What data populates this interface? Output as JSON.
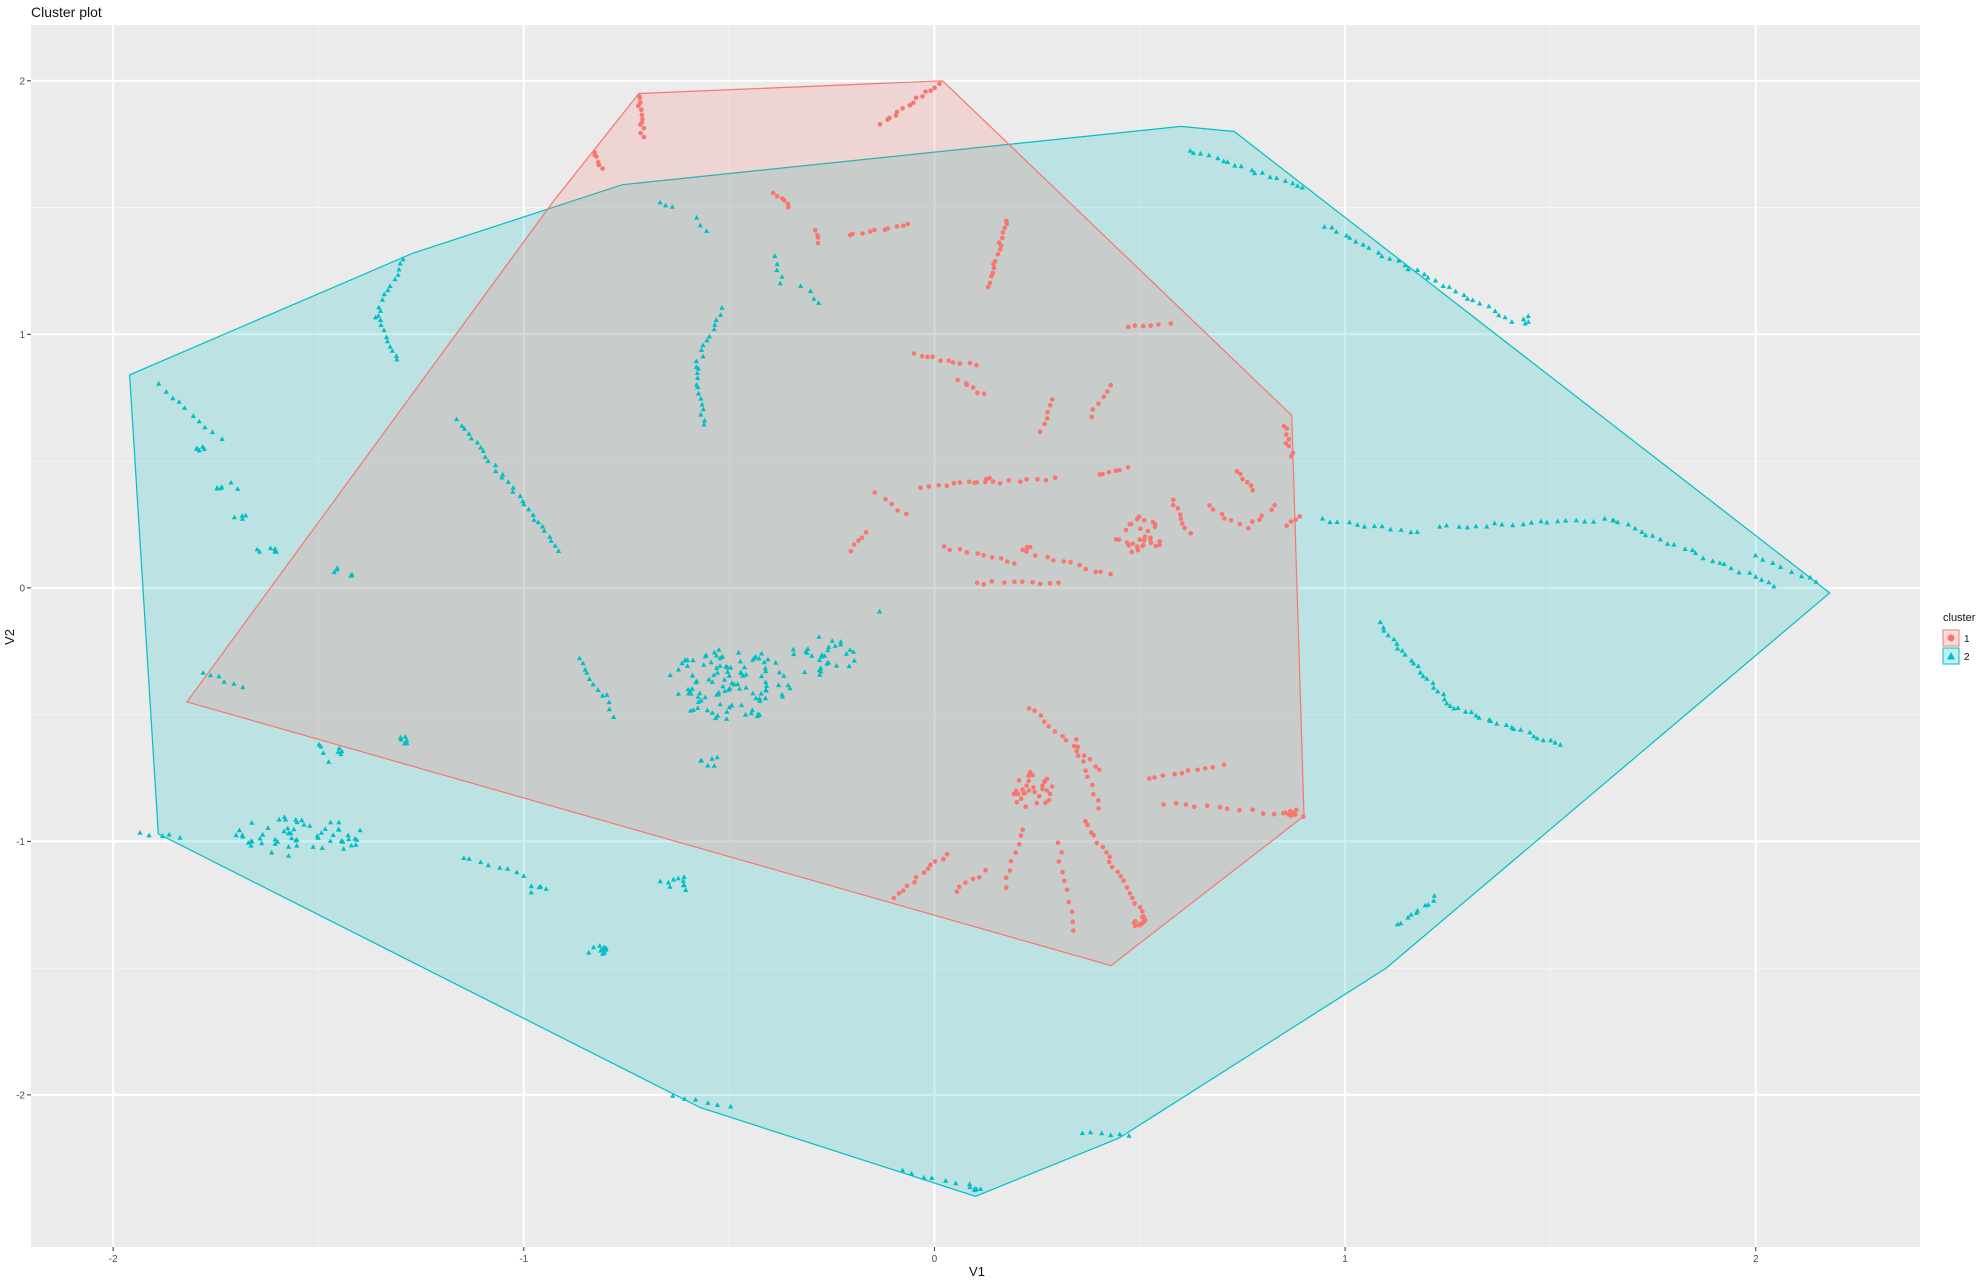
{
  "chart_data": {
    "type": "scatter",
    "title": "Cluster plot",
    "xlabel": "V1",
    "ylabel": "V2",
    "xlim": [
      -2.2,
      2.4
    ],
    "ylim": [
      -2.6,
      2.22
    ],
    "xticks": [
      -2,
      -1,
      0,
      1,
      2
    ],
    "yticks": [
      2,
      1,
      0,
      -1,
      -2
    ],
    "xtick_labels": [
      "-2",
      "-1",
      "0",
      "1",
      "2"
    ],
    "ytick_labels": [
      "2",
      "1",
      "0",
      "-1",
      "-2"
    ],
    "grid": true,
    "legend_title": "cluster",
    "legend_position": "right",
    "series": [
      {
        "name": "1",
        "color": "#F8766D",
        "shape": "circle",
        "hull": [
          [
            -0.72,
            1.95
          ],
          [
            0.02,
            2.0
          ],
          [
            0.87,
            0.68
          ],
          [
            0.9,
            -0.9
          ],
          [
            0.43,
            -1.49
          ],
          [
            -1.82,
            -0.45
          ],
          [
            -0.93,
            1.52
          ]
        ],
        "segments": [
          {
            "from": [
              -0.72,
              1.94
            ],
            "to": [
              -0.71,
              1.78
            ],
            "n": 12
          },
          {
            "from": [
              -0.13,
              1.83
            ],
            "to": [
              0.01,
              1.99
            ],
            "n": 14
          },
          {
            "from": [
              -0.83,
              1.72
            ],
            "to": [
              -0.81,
              1.66
            ],
            "n": 6
          },
          {
            "from": [
              -0.39,
              1.56
            ],
            "to": [
              -0.35,
              1.5
            ],
            "n": 6
          },
          {
            "from": [
              -0.29,
              1.41
            ],
            "to": [
              -0.28,
              1.36
            ],
            "n": 4
          },
          {
            "from": [
              -0.21,
              1.39
            ],
            "to": [
              -0.06,
              1.43
            ],
            "n": 10
          },
          {
            "from": [
              0.18,
              1.45
            ],
            "to": [
              0.13,
              1.19
            ],
            "n": 16
          },
          {
            "from": [
              0.47,
              1.03
            ],
            "to": [
              0.57,
              1.04
            ],
            "n": 6
          },
          {
            "from": [
              -0.05,
              0.92
            ],
            "to": [
              0.1,
              0.88
            ],
            "n": 10
          },
          {
            "from": [
              0.06,
              0.82
            ],
            "to": [
              0.12,
              0.76
            ],
            "n": 6
          },
          {
            "from": [
              0.29,
              0.74
            ],
            "to": [
              0.26,
              0.62
            ],
            "n": 6
          },
          {
            "from": [
              0.38,
              0.68
            ],
            "to": [
              0.43,
              0.8
            ],
            "n": 6
          },
          {
            "from": [
              0.85,
              0.64
            ],
            "to": [
              0.87,
              0.52
            ],
            "n": 8
          },
          {
            "from": [
              -0.03,
              0.39
            ],
            "to": [
              0.14,
              0.43
            ],
            "n": 10
          },
          {
            "from": [
              0.1,
              0.41
            ],
            "to": [
              0.29,
              0.43
            ],
            "n": 10
          },
          {
            "from": [
              0.4,
              0.45
            ],
            "to": [
              0.47,
              0.47
            ],
            "n": 6
          },
          {
            "from": [
              -0.2,
              0.15
            ],
            "to": [
              -0.17,
              0.22
            ],
            "n": 5
          },
          {
            "from": [
              -0.07,
              0.29
            ],
            "to": [
              -0.14,
              0.37
            ],
            "n": 5
          },
          {
            "from": [
              0.02,
              0.16
            ],
            "to": [
              0.2,
              0.1
            ],
            "n": 10
          },
          {
            "from": [
              0.1,
              0.02
            ],
            "to": [
              0.3,
              0.02
            ],
            "n": 10
          },
          {
            "from": [
              0.21,
              0.15
            ],
            "to": [
              0.43,
              0.05
            ],
            "n": 12
          },
          {
            "from": [
              0.58,
              0.35
            ],
            "to": [
              0.62,
              0.22
            ],
            "n": 8
          },
          {
            "from": [
              0.67,
              0.32
            ],
            "to": [
              0.74,
              0.25
            ],
            "n": 6
          },
          {
            "from": [
              0.74,
              0.46
            ],
            "to": [
              0.78,
              0.39
            ],
            "n": 6
          },
          {
            "from": [
              0.76,
              0.24
            ],
            "to": [
              0.83,
              0.32
            ],
            "n": 6
          },
          {
            "from": [
              0.86,
              0.25
            ],
            "to": [
              0.89,
              0.28
            ],
            "n": 4
          },
          {
            "from": [
              0.23,
              -0.47
            ],
            "to": [
              0.4,
              -0.72
            ],
            "n": 14
          },
          {
            "from": [
              0.37,
              -0.92
            ],
            "to": [
              0.51,
              -1.3
            ],
            "n": 20
          },
          {
            "from": [
              0.3,
              -1.0
            ],
            "to": [
              0.34,
              -1.35
            ],
            "n": 10
          },
          {
            "from": [
              0.22,
              -0.95
            ],
            "to": [
              0.17,
              -1.18
            ],
            "n": 8
          },
          {
            "from": [
              -0.1,
              -1.22
            ],
            "to": [
              0.03,
              -1.05
            ],
            "n": 12
          },
          {
            "from": [
              0.05,
              -1.2
            ],
            "to": [
              0.12,
              -1.12
            ],
            "n": 6
          },
          {
            "from": [
              0.52,
              -0.75
            ],
            "to": [
              0.7,
              -0.7
            ],
            "n": 10
          },
          {
            "from": [
              0.56,
              -0.85
            ],
            "to": [
              0.9,
              -0.9
            ],
            "n": 14
          },
          {
            "from": [
              0.34,
              -0.6
            ],
            "to": [
              0.4,
              -0.87
            ],
            "n": 10
          }
        ],
        "blobs": [
          {
            "center": [
              0.5,
              0.21
            ],
            "r": [
              0.06,
              0.08
            ],
            "n": 30
          },
          {
            "center": [
              0.24,
              -0.8
            ],
            "r": [
              0.05,
              0.08
            ],
            "n": 30
          },
          {
            "center": [
              0.5,
              -1.32
            ],
            "r": [
              0.015,
              0.03
            ],
            "n": 10
          },
          {
            "center": [
              0.87,
              -0.88
            ],
            "r": [
              0.02,
              0.02
            ],
            "n": 6
          },
          {
            "center": [
              0.23,
              0.16
            ],
            "r": [
              0.01,
              0.01
            ],
            "n": 3
          }
        ]
      },
      {
        "name": "2",
        "color": "#00BFC4",
        "shape": "triangle",
        "hull": [
          [
            0.6,
            1.82
          ],
          [
            0.73,
            1.8
          ],
          [
            2.18,
            -0.02
          ],
          [
            1.1,
            -1.5
          ],
          [
            0.45,
            -2.17
          ],
          [
            0.1,
            -2.4
          ],
          [
            -0.57,
            -2.05
          ],
          [
            -1.89,
            -0.97
          ],
          [
            -1.96,
            0.84
          ],
          [
            -1.27,
            1.32
          ],
          [
            -0.76,
            1.59
          ]
        ],
        "segments": [
          {
            "from": [
              0.62,
              1.73
            ],
            "to": [
              0.9,
              1.58
            ],
            "n": 18
          },
          {
            "from": [
              0.95,
              1.43
            ],
            "to": [
              1.38,
              1.08
            ],
            "n": 28
          },
          {
            "from": [
              -1.29,
              1.3
            ],
            "to": [
              -1.36,
              1.07
            ],
            "n": 12
          },
          {
            "from": [
              -1.36,
              1.07
            ],
            "to": [
              -1.31,
              0.9
            ],
            "n": 10
          },
          {
            "from": [
              -0.52,
              1.1
            ],
            "to": [
              -0.58,
              0.87
            ],
            "n": 12
          },
          {
            "from": [
              -0.58,
              0.87
            ],
            "to": [
              -0.56,
              0.64
            ],
            "n": 12
          },
          {
            "from": [
              -0.39,
              1.31
            ],
            "to": [
              -0.37,
              1.2
            ],
            "n": 5
          },
          {
            "from": [
              -0.32,
              1.19
            ],
            "to": [
              -0.28,
              1.12
            ],
            "n": 4
          },
          {
            "from": [
              -0.67,
              1.52
            ],
            "to": [
              -0.64,
              1.5
            ],
            "n": 3
          },
          {
            "from": [
              -0.58,
              1.46
            ],
            "to": [
              -0.56,
              1.41
            ],
            "n": 3
          },
          {
            "from": [
              -1.16,
              0.66
            ],
            "to": [
              -0.91,
              0.15
            ],
            "n": 30
          },
          {
            "from": [
              -1.89,
              0.8
            ],
            "to": [
              -1.74,
              0.59
            ],
            "n": 10
          },
          {
            "from": [
              1.08,
              -0.14
            ],
            "to": [
              1.26,
              -0.47
            ],
            "n": 22
          },
          {
            "from": [
              1.26,
              -0.47
            ],
            "to": [
              1.53,
              -0.62
            ],
            "n": 20
          },
          {
            "from": [
              0.94,
              0.27
            ],
            "to": [
              1.18,
              0.22
            ],
            "n": 12
          },
          {
            "from": [
              1.23,
              0.24
            ],
            "to": [
              1.65,
              0.27
            ],
            "n": 20
          },
          {
            "from": [
              1.65,
              0.27
            ],
            "to": [
              2.05,
              0.01
            ],
            "n": 24
          },
          {
            "from": [
              2.0,
              0.13
            ],
            "to": [
              2.15,
              0.02
            ],
            "n": 8
          },
          {
            "from": [
              1.13,
              -1.33
            ],
            "to": [
              1.22,
              -1.22
            ],
            "n": 10
          },
          {
            "from": [
              -0.87,
              -0.28
            ],
            "to": [
              -0.81,
              -0.42
            ],
            "n": 8
          },
          {
            "from": [
              -0.8,
              -0.42
            ],
            "to": [
              -0.78,
              -0.51
            ],
            "n": 4
          },
          {
            "from": [
              -1.78,
              -0.33
            ],
            "to": [
              -1.69,
              -0.39
            ],
            "n": 6
          },
          {
            "from": [
              -1.93,
              -0.97
            ],
            "to": [
              -1.84,
              -0.98
            ],
            "n": 5
          },
          {
            "from": [
              -1.15,
              -1.06
            ],
            "to": [
              -1.0,
              -1.13
            ],
            "n": 8
          },
          {
            "from": [
              -0.64,
              -2.0
            ],
            "to": [
              -0.5,
              -2.05
            ],
            "n": 6
          },
          {
            "from": [
              -0.08,
              -2.3
            ],
            "to": [
              0.05,
              -2.35
            ],
            "n": 6
          },
          {
            "from": [
              0.36,
              -2.15
            ],
            "to": [
              0.47,
              -2.16
            ],
            "n": 6
          }
        ],
        "blobs": [
          {
            "center": [
              -0.5,
              -0.38
            ],
            "r": [
              0.16,
              0.14
            ],
            "n": 110
          },
          {
            "center": [
              -0.27,
              -0.27
            ],
            "r": [
              0.08,
              0.08
            ],
            "n": 30
          },
          {
            "center": [
              -1.55,
              -0.98
            ],
            "r": [
              0.16,
              0.08
            ],
            "n": 60
          },
          {
            "center": [
              -1.72,
              0.4
            ],
            "r": [
              0.03,
              0.02
            ],
            "n": 6
          },
          {
            "center": [
              -1.78,
              0.55
            ],
            "r": [
              0.02,
              0.01
            ],
            "n": 5
          },
          {
            "center": [
              -1.69,
              0.28
            ],
            "r": [
              0.02,
              0.01
            ],
            "n": 4
          },
          {
            "center": [
              -1.62,
              0.15
            ],
            "r": [
              0.04,
              0.01
            ],
            "n": 6
          },
          {
            "center": [
              -1.45,
              0.06
            ],
            "r": [
              0.04,
              0.02
            ],
            "n": 6
          },
          {
            "center": [
              -1.48,
              -0.65
            ],
            "r": [
              0.04,
              0.04
            ],
            "n": 8
          },
          {
            "center": [
              -1.28,
              -0.6
            ],
            "r": [
              0.04,
              0.02
            ],
            "n": 6
          },
          {
            "center": [
              -0.55,
              -0.68
            ],
            "r": [
              0.03,
              0.03
            ],
            "n": 6
          },
          {
            "center": [
              -0.63,
              -1.17
            ],
            "r": [
              0.04,
              0.04
            ],
            "n": 10
          },
          {
            "center": [
              -0.82,
              -1.43
            ],
            "r": [
              0.025,
              0.02
            ],
            "n": 12
          },
          {
            "center": [
              -0.97,
              -1.19
            ],
            "r": [
              0.03,
              0.02
            ],
            "n": 5
          },
          {
            "center": [
              1.42,
              1.06
            ],
            "r": [
              0.04,
              0.02
            ],
            "n": 6
          },
          {
            "center": [
              -0.13,
              -0.09
            ],
            "r": [
              0.005,
              0.005
            ],
            "n": 1
          },
          {
            "center": [
              0.1,
              -2.36
            ],
            "r": [
              0.02,
              0.02
            ],
            "n": 6
          }
        ]
      }
    ]
  }
}
